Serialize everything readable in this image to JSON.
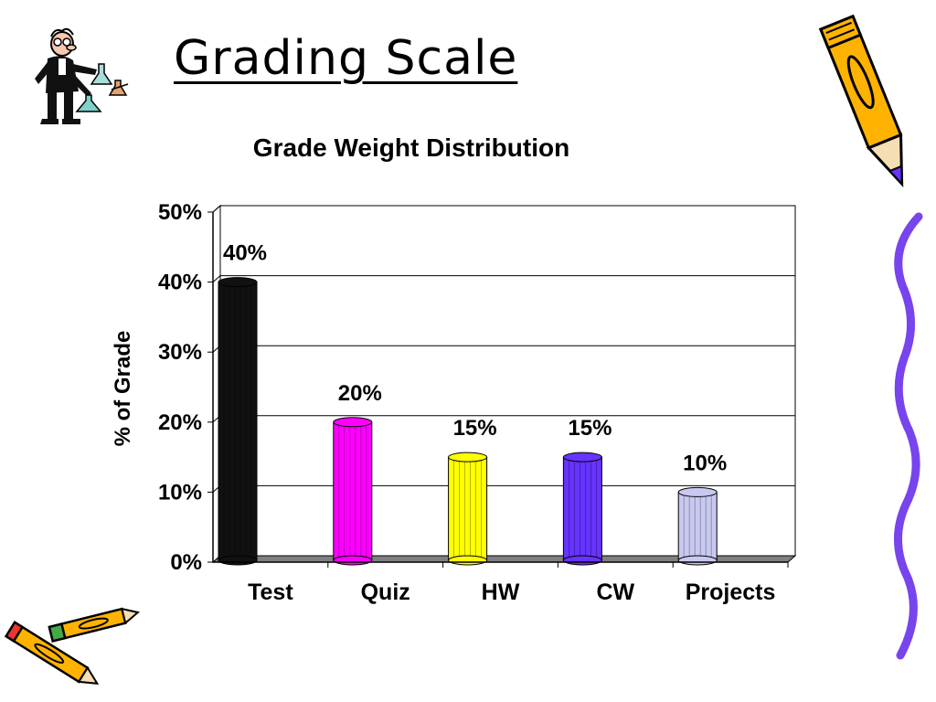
{
  "slide": {
    "title": "Grading Scale"
  },
  "clipart": {
    "scientist": "scientist-with-flasks-icon",
    "pencil_top_right": "pencil-icon",
    "pencils_bottom_left": "crossed-pencils-icon",
    "wavy_line": "wavy-line-decoration"
  },
  "colors": {
    "Test": "#111111",
    "Quiz": "#ff00ff",
    "HW": "#ffff00",
    "CW": "#6633ff",
    "Projects": "#c8c8f0",
    "wavy_line": "#7744ee",
    "pencil_body": "#ffb300"
  },
  "chart_data": {
    "type": "bar",
    "title": "Grade Weight Distribution",
    "xlabel": "",
    "ylabel": "% of Grade",
    "categories": [
      "Test",
      "Quiz",
      "HW",
      "CW",
      "Projects"
    ],
    "values": [
      40,
      20,
      15,
      15,
      10
    ],
    "value_labels": [
      "40%",
      "20%",
      "15%",
      "15%",
      "10%"
    ],
    "ylim": [
      0,
      50
    ],
    "yticks": [
      "0%",
      "10%",
      "20%",
      "30%",
      "40%",
      "50%"
    ],
    "grid": true,
    "style": "3d-cylinder"
  }
}
